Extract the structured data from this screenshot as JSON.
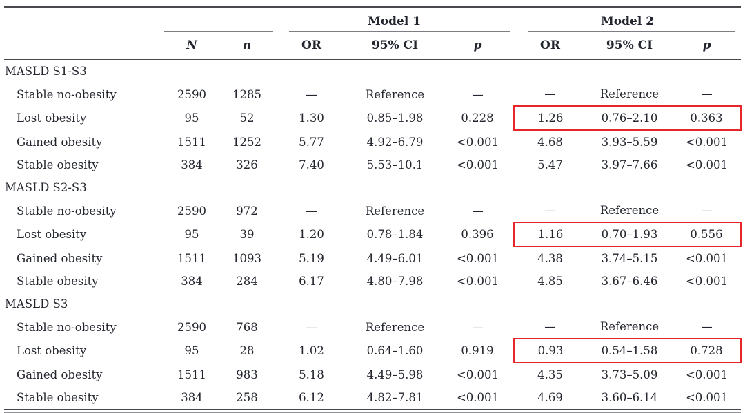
{
  "colors": {
    "highlight_box": "#e5262b",
    "text": "#23262e",
    "rule_heavy": "#44474c",
    "rule_light": "#7b7e82"
  },
  "table": {
    "group_headers": [
      {
        "label": ""
      },
      {
        "label": ""
      },
      {
        "label": "Model 1"
      },
      {
        "label": "Model 2"
      }
    ],
    "column_headers": [
      "N",
      "n",
      "OR",
      "95% CI",
      "p",
      "OR",
      "95% CI",
      "p"
    ],
    "sections": [
      {
        "title": "MASLD S1-S3",
        "rows": [
          {
            "label": "Stable no-obesity",
            "values": [
              "2590",
              "1285",
              "—",
              "Reference",
              "—",
              "—",
              "Reference",
              "—"
            ],
            "highlighted": false
          },
          {
            "label": "Lost obesity",
            "values": [
              "95",
              "52",
              "1.30",
              "0.85–1.98",
              "0.228",
              "1.26",
              "0.76–2.10",
              "0.363"
            ],
            "highlighted": true
          },
          {
            "label": "Gained obesity",
            "values": [
              "1511",
              "1252",
              "5.77",
              "4.92–6.79",
              "<0.001",
              "4.68",
              "3.93–5.59",
              "<0.001"
            ],
            "highlighted": false
          },
          {
            "label": "Stable obesity",
            "values": [
              "384",
              "326",
              "7.40",
              "5.53–10.1",
              "<0.001",
              "5.47",
              "3.97–7.66",
              "<0.001"
            ],
            "highlighted": false
          }
        ]
      },
      {
        "title": "MASLD S2-S3",
        "rows": [
          {
            "label": "Stable no-obesity",
            "values": [
              "2590",
              "972",
              "—",
              "Reference",
              "—",
              "—",
              "Reference",
              "—"
            ],
            "highlighted": false
          },
          {
            "label": "Lost obesity",
            "values": [
              "95",
              "39",
              "1.20",
              "0.78–1.84",
              "0.396",
              "1.16",
              "0.70–1.93",
              "0.556"
            ],
            "highlighted": true
          },
          {
            "label": "Gained obesity",
            "values": [
              "1511",
              "1093",
              "5.19",
              "4.49–6.01",
              "<0.001",
              "4.38",
              "3.74–5.15",
              "<0.001"
            ],
            "highlighted": false
          },
          {
            "label": "Stable obesity",
            "values": [
              "384",
              "284",
              "6.17",
              "4.80–7.98",
              "<0.001",
              "4.85",
              "3.67–6.46",
              "<0.001"
            ],
            "highlighted": false
          }
        ]
      },
      {
        "title": "MASLD S3",
        "rows": [
          {
            "label": "Stable no-obesity",
            "values": [
              "2590",
              "768",
              "—",
              "Reference",
              "—",
              "—",
              "Reference",
              "—"
            ],
            "highlighted": false
          },
          {
            "label": "Lost obesity",
            "values": [
              "95",
              "28",
              "1.02",
              "0.64–1.60",
              "0.919",
              "0.93",
              "0.54–1.58",
              "0.728"
            ],
            "highlighted": true
          },
          {
            "label": "Gained obesity",
            "values": [
              "1511",
              "983",
              "5.18",
              "4.49–5.98",
              "<0.001",
              "4.35",
              "3.73–5.09",
              "<0.001"
            ],
            "highlighted": false
          },
          {
            "label": "Stable obesity",
            "values": [
              "384",
              "258",
              "6.12",
              "4.82–7.81",
              "<0.001",
              "4.69",
              "3.60–6.14",
              "<0.001"
            ],
            "highlighted": false
          }
        ]
      }
    ]
  },
  "chart_data": {
    "type": "table",
    "title": "",
    "columns": [
      "",
      "N",
      "n",
      "Model 1 OR",
      "Model 1 95% CI",
      "Model 1 p",
      "Model 2 OR",
      "Model 2 95% CI",
      "Model 2 p"
    ],
    "rows": [
      [
        "MASLD S1-S3",
        "",
        "",
        "",
        "",
        "",
        "",
        "",
        ""
      ],
      [
        "Stable no-obesity",
        "2590",
        "1285",
        "—",
        "Reference",
        "—",
        "—",
        "Reference",
        "—"
      ],
      [
        "Lost obesity",
        "95",
        "52",
        "1.30",
        "0.85–1.98",
        "0.228",
        "1.26",
        "0.76–2.10",
        "0.363"
      ],
      [
        "Gained obesity",
        "1511",
        "1252",
        "5.77",
        "4.92–6.79",
        "<0.001",
        "4.68",
        "3.93–5.59",
        "<0.001"
      ],
      [
        "Stable obesity",
        "384",
        "326",
        "7.40",
        "5.53–10.1",
        "<0.001",
        "5.47",
        "3.97–7.66",
        "<0.001"
      ],
      [
        "MASLD S2-S3",
        "",
        "",
        "",
        "",
        "",
        "",
        "",
        ""
      ],
      [
        "Stable no-obesity",
        "2590",
        "972",
        "—",
        "Reference",
        "—",
        "—",
        "Reference",
        "—"
      ],
      [
        "Lost obesity",
        "95",
        "39",
        "1.20",
        "0.78–1.84",
        "0.396",
        "1.16",
        "0.70–1.93",
        "0.556"
      ],
      [
        "Gained obesity",
        "1511",
        "1093",
        "5.19",
        "4.49–6.01",
        "<0.001",
        "4.38",
        "3.74–5.15",
        "<0.001"
      ],
      [
        "Stable obesity",
        "384",
        "284",
        "6.17",
        "4.80–7.98",
        "<0.001",
        "4.85",
        "3.67–6.46",
        "<0.001"
      ],
      [
        "MASLD S3",
        "",
        "",
        "",
        "",
        "",
        "",
        "",
        ""
      ],
      [
        "Stable no-obesity",
        "2590",
        "768",
        "—",
        "Reference",
        "—",
        "—",
        "Reference",
        "—"
      ],
      [
        "Lost obesity",
        "95",
        "28",
        "1.02",
        "0.64–1.60",
        "0.919",
        "0.93",
        "0.54–1.58",
        "0.728"
      ],
      [
        "Gained obesity",
        "1511",
        "983",
        "5.18",
        "4.49–5.98",
        "<0.001",
        "4.35",
        "3.73–5.09",
        "<0.001"
      ],
      [
        "Stable obesity",
        "384",
        "258",
        "6.12",
        "4.82–7.81",
        "<0.001",
        "4.69",
        "3.60–6.14",
        "<0.001"
      ]
    ],
    "highlighted_cells_note": "Model 2 OR / 95% CI / p cells of each Lost obesity row are enclosed in a red box"
  }
}
